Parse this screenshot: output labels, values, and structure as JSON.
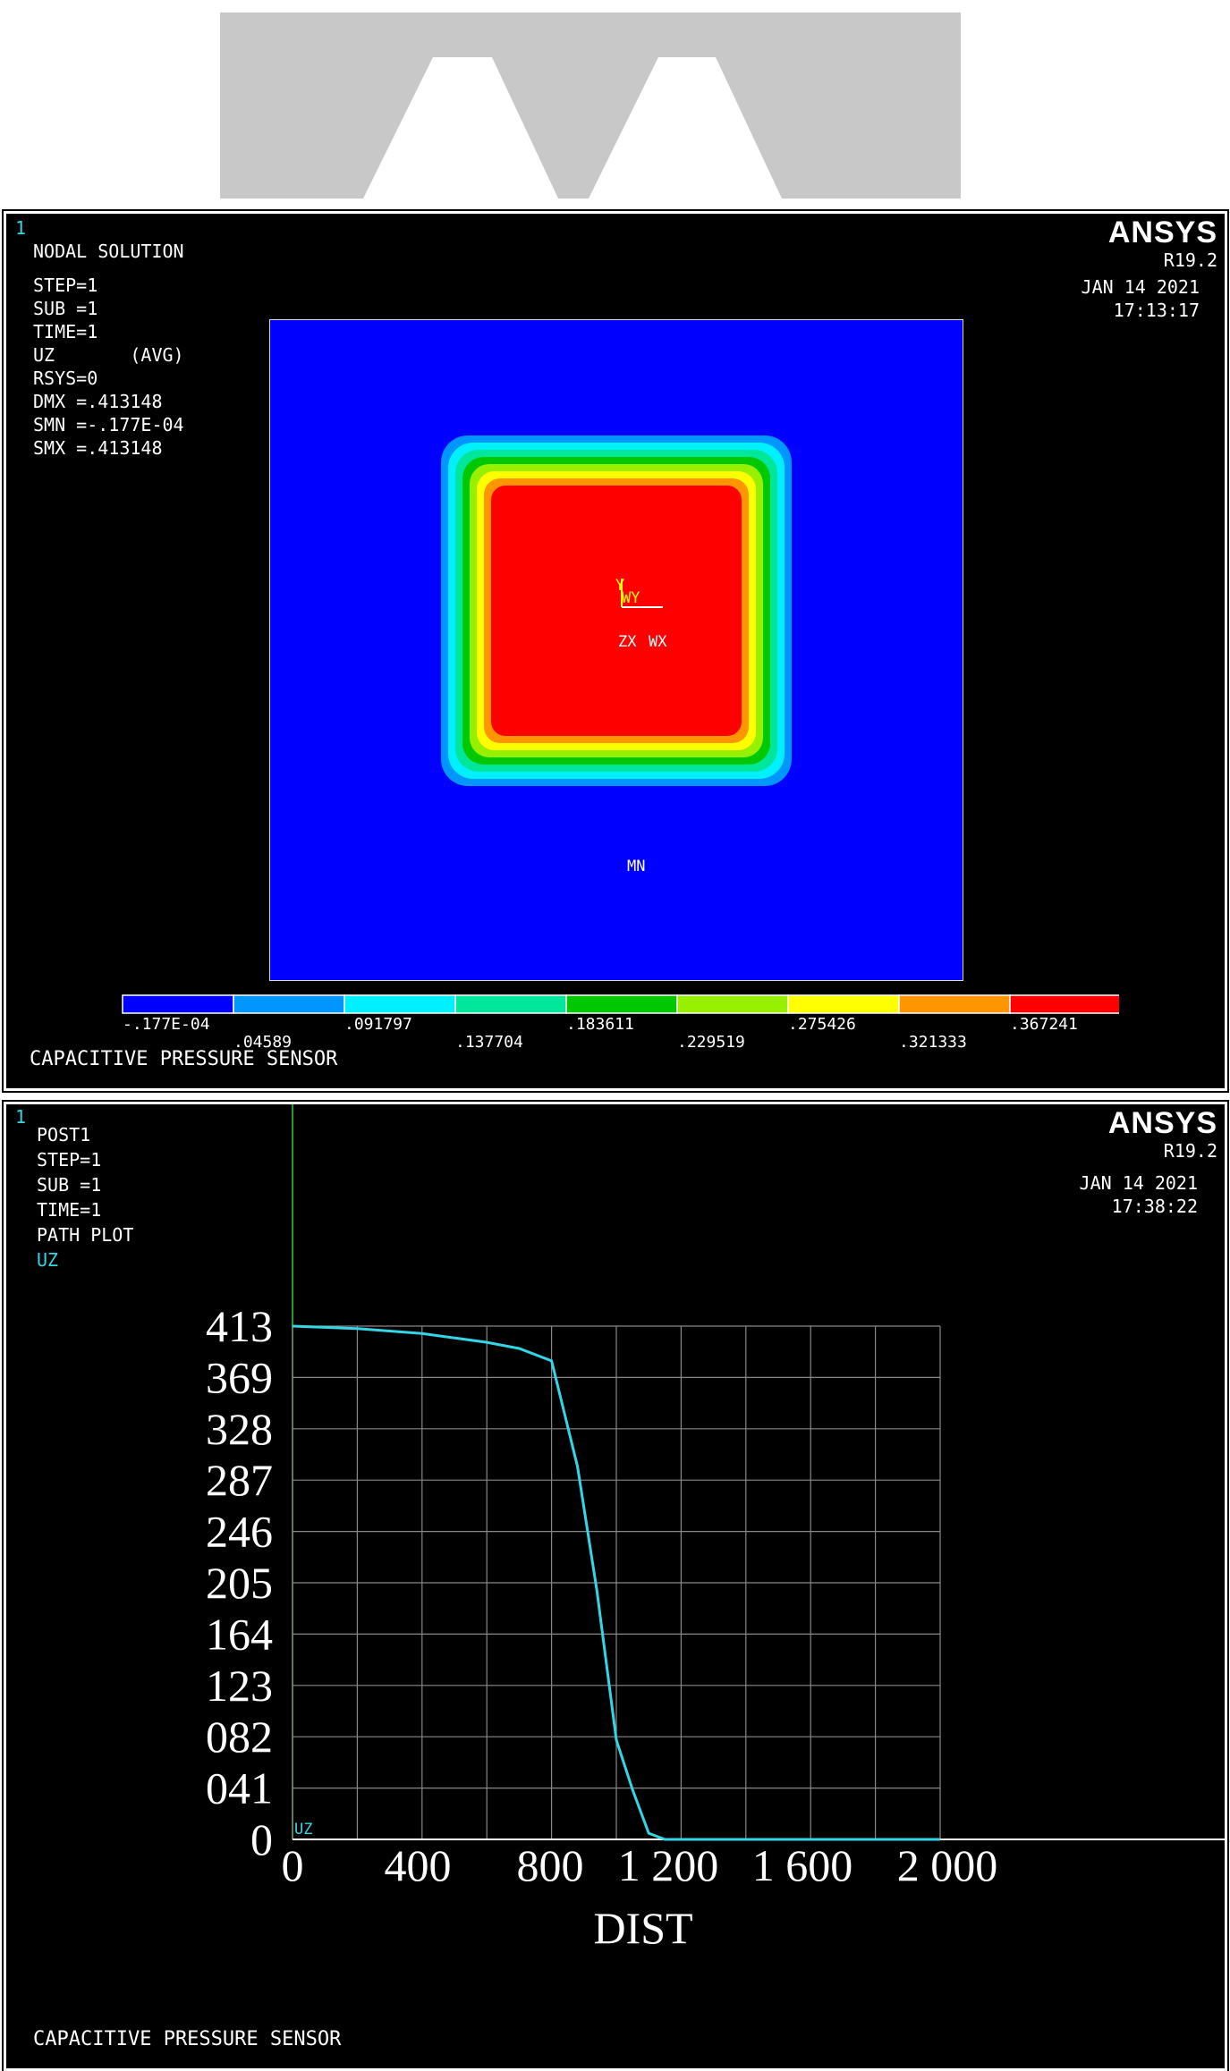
{
  "panel1": {
    "index": "1",
    "brand": "ANSYS",
    "release": "R19.2",
    "date": "JAN 14 2021",
    "time": "17:13:17",
    "heading": "NODAL SOLUTION",
    "info": [
      "STEP=1",
      "SUB =1",
      "TIME=1",
      "UZ       (AVG)",
      "RSYS=0",
      "DMX =.413148",
      "SMN =-.177E-04",
      "SMX =.413148"
    ],
    "triad": {
      "y": "Y",
      "wy": "WY",
      "zx": "ZX",
      "wx": "WX"
    },
    "min_marker": "MN",
    "footer": "CAPACITIVE PRESSURE SENSOR",
    "legend": {
      "colors": [
        "#0000ff",
        "#0096ff",
        "#00f0ff",
        "#00e69a",
        "#00c800",
        "#96f000",
        "#ffff00",
        "#ff9600",
        "#ff0000"
      ],
      "labels": [
        "-.177E-04",
        ".04589",
        ".091797",
        ".137704",
        ".183611",
        ".229519",
        ".275426",
        ".321333",
        ".367241",
        ".413148"
      ]
    }
  },
  "panel2": {
    "index": "1",
    "brand": "ANSYS",
    "release": "R19.2",
    "date": "JAN 14 2021",
    "time": "17:38:22",
    "heading": "POST1",
    "info": [
      "STEP=1",
      "SUB =1",
      "TIME=1",
      "PATH PLOT"
    ],
    "variable": "UZ",
    "curve_label": "UZ",
    "footer": "CAPACITIVE PRESSURE SENSOR"
  },
  "chart_data": [
    {
      "type": "heatmap",
      "title": "NODAL SOLUTION",
      "quantity": "UZ",
      "min": -1.77e-05,
      "max": 0.413148,
      "colorbar_labels": [
        "-.177E-04",
        ".04589",
        ".091797",
        ".137704",
        ".183611",
        ".229519",
        ".275426",
        ".321333",
        ".367241",
        ".413148"
      ]
    },
    {
      "type": "line",
      "xlabel": "DIST",
      "ylabel": "",
      "x_ticks": [
        "0",
        "400",
        "800",
        "1 200",
        "1 600",
        "2 000"
      ],
      "y_ticks": [
        "0",
        "041",
        "082",
        "123",
        "164",
        "205",
        "246",
        "287",
        "328",
        "369",
        "413"
      ],
      "xlim": [
        0,
        2000
      ],
      "ylim": [
        0,
        413
      ],
      "grid": true,
      "series": [
        {
          "name": "UZ",
          "x": [
            0,
            200,
            400,
            600,
            700,
            800,
            880,
            940,
            1000,
            1050,
            1100,
            1150,
            1200,
            2000
          ],
          "y": [
            413,
            411,
            407,
            400,
            395,
            385,
            300,
            200,
            80,
            40,
            5,
            0,
            0,
            0
          ]
        }
      ]
    }
  ]
}
